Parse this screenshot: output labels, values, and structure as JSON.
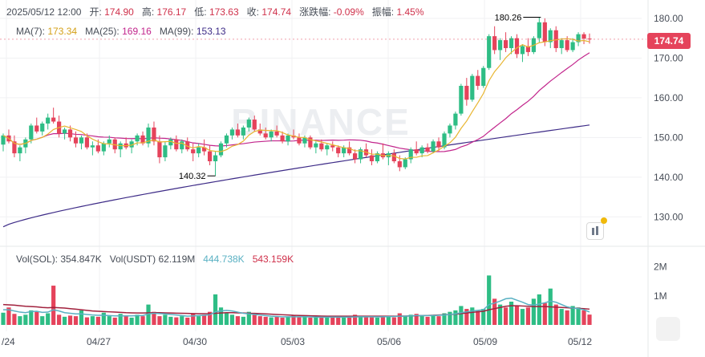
{
  "header": {
    "datetime": "2025/05/12 12:00",
    "open_label": "开:",
    "open": "174.90",
    "high_label": "高:",
    "high": "176.17",
    "low_label": "低:",
    "low": "173.63",
    "close_label": "收:",
    "close": "174.74",
    "change_label": "涨跌幅:",
    "change": "-0.09%",
    "amp_label": "振幅:",
    "amp": "1.45%"
  },
  "ma": {
    "ma7_label": "MA(7):",
    "ma7": "173.34",
    "ma25_label": "MA(25):",
    "ma25": "169.16",
    "ma99_label": "MA(99):",
    "ma99": "153.13"
  },
  "volume": {
    "sol_label": "Vol(SOL):",
    "sol": "354.847K",
    "usdt_label": "Vol(USDT)",
    "usdt": "62.119M",
    "ma1": "444.738K",
    "ma2": "543.159K"
  },
  "price_badge": "174.74",
  "watermark": "BINANCE",
  "colors": {
    "up": "#2ebd85",
    "down": "#e5435b",
    "ma7": "#e8b530",
    "ma25": "#c2258c",
    "ma99": "#3d2b87",
    "vol_ma1": "#5ab1c3",
    "vol_ma2": "#a1213d"
  },
  "chart_data": {
    "type": "candlestick",
    "price_axis": {
      "ticks": [
        "180.00",
        "170.00",
        "160.00",
        "150.00",
        "140.00",
        "130.00"
      ],
      "range": [
        124,
        183
      ]
    },
    "volume_axis": {
      "ticks": [
        "2M",
        "1M"
      ],
      "range": [
        0,
        2400000
      ]
    },
    "x_ticks": [
      "/24",
      "04/27",
      "04/30",
      "05/03",
      "05/06",
      "05/09",
      "05/12"
    ],
    "annotations": {
      "max": "180.26",
      "min": "140.32"
    },
    "candles": [
      [
        148.2,
        151.0,
        146.5,
        150.5
      ],
      [
        150.5,
        152.0,
        148.5,
        149.0
      ],
      [
        149.0,
        150.5,
        145.0,
        146.0
      ],
      [
        146.0,
        148.0,
        144.0,
        147.5
      ],
      [
        147.5,
        150.0,
        146.0,
        149.5
      ],
      [
        149.5,
        153.5,
        148.5,
        153.0
      ],
      [
        153.0,
        155.0,
        151.0,
        151.5
      ],
      [
        151.5,
        154.0,
        150.5,
        153.5
      ],
      [
        153.5,
        156.0,
        152.0,
        155.0
      ],
      [
        155.0,
        157.5,
        153.5,
        154.0
      ],
      [
        154.0,
        155.5,
        150.0,
        151.0
      ],
      [
        151.0,
        152.5,
        149.5,
        152.0
      ],
      [
        152.0,
        153.0,
        149.0,
        150.0
      ],
      [
        150.0,
        151.5,
        147.5,
        148.5
      ],
      [
        148.5,
        150.5,
        147.0,
        150.0
      ],
      [
        150.0,
        151.0,
        147.0,
        147.5
      ],
      [
        147.5,
        149.0,
        145.5,
        148.0
      ],
      [
        148.0,
        149.5,
        146.0,
        146.5
      ],
      [
        146.5,
        149.0,
        145.5,
        148.5
      ],
      [
        148.5,
        150.5,
        147.5,
        149.5
      ],
      [
        149.5,
        150.0,
        146.0,
        147.0
      ],
      [
        147.0,
        149.0,
        145.0,
        148.5
      ],
      [
        148.5,
        150.0,
        147.0,
        147.5
      ],
      [
        147.5,
        149.5,
        146.0,
        149.0
      ],
      [
        149.0,
        151.0,
        148.0,
        150.5
      ],
      [
        150.5,
        151.5,
        148.0,
        148.5
      ],
      [
        148.5,
        153.5,
        147.5,
        152.5
      ],
      [
        152.5,
        154.0,
        148.0,
        149.0
      ],
      [
        149.0,
        150.5,
        143.5,
        145.0
      ],
      [
        145.0,
        149.0,
        144.0,
        148.0
      ],
      [
        148.0,
        150.0,
        147.0,
        149.5
      ],
      [
        149.5,
        150.5,
        146.5,
        147.0
      ],
      [
        147.0,
        149.5,
        146.0,
        149.0
      ],
      [
        149.0,
        150.0,
        146.5,
        147.0
      ],
      [
        147.0,
        148.5,
        144.0,
        146.0
      ],
      [
        146.0,
        148.5,
        145.0,
        147.5
      ],
      [
        147.5,
        149.5,
        145.5,
        146.5
      ],
      [
        146.5,
        148.0,
        143.0,
        144.0
      ],
      [
        144.0,
        146.5,
        140.32,
        145.5
      ],
      [
        145.5,
        149.0,
        145.0,
        148.5
      ],
      [
        148.5,
        151.0,
        147.5,
        150.5
      ],
      [
        150.5,
        152.5,
        149.5,
        152.0
      ],
      [
        152.0,
        153.5,
        150.0,
        150.5
      ],
      [
        150.5,
        153.0,
        149.5,
        152.5
      ],
      [
        152.5,
        155.0,
        151.5,
        154.5
      ],
      [
        154.5,
        155.5,
        151.5,
        152.0
      ],
      [
        152.0,
        153.5,
        150.5,
        151.0
      ],
      [
        151.0,
        152.5,
        149.5,
        150.0
      ],
      [
        150.0,
        152.0,
        149.0,
        151.5
      ],
      [
        151.5,
        153.0,
        150.0,
        150.5
      ],
      [
        150.5,
        151.5,
        148.5,
        149.0
      ],
      [
        149.0,
        151.0,
        148.0,
        150.5
      ],
      [
        150.5,
        152.0,
        149.5,
        150.0
      ],
      [
        150.0,
        151.0,
        148.0,
        148.5
      ],
      [
        148.5,
        150.5,
        147.5,
        150.0
      ],
      [
        150.0,
        150.5,
        147.0,
        147.5
      ],
      [
        147.5,
        149.0,
        146.0,
        148.5
      ],
      [
        148.5,
        149.5,
        146.5,
        147.0
      ],
      [
        147.0,
        148.5,
        145.5,
        148.0
      ],
      [
        148.0,
        149.0,
        146.5,
        147.5
      ],
      [
        147.5,
        148.0,
        145.0,
        146.0
      ],
      [
        146.0,
        148.0,
        145.0,
        147.5
      ],
      [
        147.5,
        149.0,
        145.5,
        146.0
      ],
      [
        146.0,
        147.0,
        143.5,
        144.5
      ],
      [
        144.5,
        147.5,
        143.5,
        147.0
      ],
      [
        147.0,
        148.5,
        145.0,
        145.5
      ],
      [
        145.5,
        147.0,
        143.0,
        144.0
      ],
      [
        144.0,
        146.5,
        143.5,
        146.0
      ],
      [
        146.0,
        148.5,
        144.5,
        145.0
      ],
      [
        145.0,
        146.5,
        143.0,
        146.0
      ],
      [
        146.0,
        147.0,
        143.5,
        144.0
      ],
      [
        144.0,
        145.5,
        141.5,
        142.5
      ],
      [
        142.5,
        145.0,
        142.0,
        144.5
      ],
      [
        144.5,
        147.5,
        143.5,
        147.0
      ],
      [
        147.0,
        149.0,
        145.5,
        146.0
      ],
      [
        146.0,
        148.0,
        145.0,
        147.5
      ],
      [
        147.5,
        148.5,
        146.0,
        146.5
      ],
      [
        146.5,
        149.5,
        146.0,
        149.0
      ],
      [
        149.0,
        150.0,
        146.5,
        147.5
      ],
      [
        147.5,
        151.5,
        147.0,
        151.0
      ],
      [
        151.0,
        153.5,
        150.0,
        153.0
      ],
      [
        153.0,
        156.5,
        152.0,
        156.0
      ],
      [
        156.0,
        163.5,
        155.5,
        163.0
      ],
      [
        163.0,
        165.0,
        158.0,
        159.5
      ],
      [
        159.5,
        166.0,
        159.0,
        165.5
      ],
      [
        165.5,
        167.0,
        162.0,
        163.0
      ],
      [
        163.0,
        168.0,
        162.5,
        167.5
      ],
      [
        167.5,
        176.0,
        167.0,
        175.5
      ],
      [
        175.5,
        178.0,
        171.0,
        172.0
      ],
      [
        172.0,
        175.0,
        169.5,
        174.5
      ],
      [
        174.5,
        176.5,
        171.5,
        172.5
      ],
      [
        172.5,
        175.5,
        171.0,
        175.0
      ],
      [
        175.0,
        176.0,
        170.0,
        171.0
      ],
      [
        171.0,
        173.5,
        169.0,
        173.0
      ],
      [
        173.0,
        175.0,
        170.5,
        171.5
      ],
      [
        171.5,
        175.5,
        171.0,
        175.0
      ],
      [
        175.0,
        180.26,
        174.0,
        179.0
      ],
      [
        179.0,
        180.0,
        173.0,
        174.0
      ],
      [
        174.0,
        177.5,
        172.5,
        177.0
      ],
      [
        177.0,
        178.0,
        171.5,
        172.5
      ],
      [
        172.5,
        175.0,
        171.0,
        174.5
      ],
      [
        174.5,
        175.5,
        171.5,
        172.0
      ],
      [
        172.0,
        175.0,
        171.5,
        174.0
      ],
      [
        174.0,
        176.5,
        173.0,
        176.0
      ],
      [
        176.0,
        176.5,
        173.5,
        174.9
      ],
      [
        174.9,
        176.17,
        173.63,
        174.74
      ]
    ],
    "volumes": [
      420000,
      600000,
      380000,
      300000,
      350000,
      500000,
      450000,
      300000,
      400000,
      1350000,
      350000,
      280000,
      320000,
      300000,
      500000,
      260000,
      300000,
      280000,
      420000,
      300000,
      250000,
      380000,
      300000,
      250000,
      350000,
      300000,
      700000,
      450000,
      300000,
      350000,
      280000,
      260000,
      300000,
      250000,
      400000,
      300000,
      350000,
      450000,
      1050000,
      600000,
      400000,
      350000,
      300000,
      280000,
      450000,
      350000,
      300000,
      280000,
      260000,
      300000,
      250000,
      280000,
      320000,
      260000,
      300000,
      250000,
      280000,
      260000,
      250000,
      300000,
      260000,
      280000,
      250000,
      350000,
      300000,
      280000,
      260000,
      250000,
      300000,
      280000,
      260000,
      400000,
      300000,
      350000,
      380000,
      300000,
      280000,
      350000,
      300000,
      400000,
      450000,
      500000,
      650000,
      550000,
      600000,
      480000,
      550000,
      1700000,
      900000,
      700000,
      600000,
      800000,
      650000,
      550000,
      600000,
      900000,
      1050000,
      750000,
      1250000,
      700000,
      550000,
      500000,
      650000,
      600000,
      500000,
      354847
    ],
    "vol_ma1_points": [
      520000,
      520000,
      480000,
      440000,
      420000,
      460000,
      470000,
      430000,
      440000,
      520000,
      480000,
      420000,
      400000,
      380000,
      380000,
      360000,
      340000,
      330000,
      330000,
      320000,
      310000,
      310000,
      310000,
      310000,
      320000,
      320000,
      380000,
      400000,
      390000,
      380000,
      360000,
      340000,
      320000,
      300000,
      310000,
      320000,
      330000,
      350000,
      450000,
      480000,
      500000,
      480000,
      440000,
      400000,
      380000,
      360000,
      340000,
      320000,
      300000,
      290000,
      280000,
      280000,
      280000,
      280000,
      280000,
      275000,
      270000,
      265000,
      265000,
      270000,
      270000,
      270000,
      270000,
      275000,
      280000,
      280000,
      280000,
      275000,
      280000,
      285000,
      290000,
      300000,
      300000,
      310000,
      320000,
      320000,
      320000,
      320000,
      330000,
      340000,
      360000,
      380000,
      420000,
      450000,
      480000,
      500000,
      520000,
      700000,
      750000,
      820000,
      900000,
      920000,
      850000,
      780000,
      700000,
      680000,
      720000,
      760000,
      820000,
      780000,
      700000,
      620000,
      580000,
      560000,
      520000,
      444738
    ],
    "vol_ma2_points": [
      700000,
      690000,
      680000,
      660000,
      640000,
      630000,
      620000,
      600000,
      590000,
      600000,
      590000,
      580000,
      560000,
      540000,
      520000,
      500000,
      480000,
      470000,
      460000,
      450000,
      440000,
      430000,
      420000,
      415000,
      410000,
      410000,
      415000,
      420000,
      420000,
      415000,
      410000,
      405000,
      400000,
      395000,
      390000,
      385000,
      385000,
      390000,
      400000,
      410000,
      420000,
      420000,
      415000,
      410000,
      400000,
      395000,
      390000,
      380000,
      370000,
      360000,
      350000,
      340000,
      330000,
      325000,
      320000,
      315000,
      310000,
      305000,
      300000,
      300000,
      300000,
      300000,
      300000,
      300000,
      300000,
      300000,
      300000,
      300000,
      300000,
      300000,
      300000,
      305000,
      305000,
      310000,
      315000,
      320000,
      325000,
      330000,
      340000,
      350000,
      360000,
      370000,
      390000,
      410000,
      430000,
      450000,
      470000,
      520000,
      560000,
      600000,
      640000,
      660000,
      660000,
      650000,
      640000,
      630000,
      630000,
      630000,
      620000,
      610000,
      600000,
      590000,
      580000,
      570000,
      560000,
      543159
    ]
  }
}
